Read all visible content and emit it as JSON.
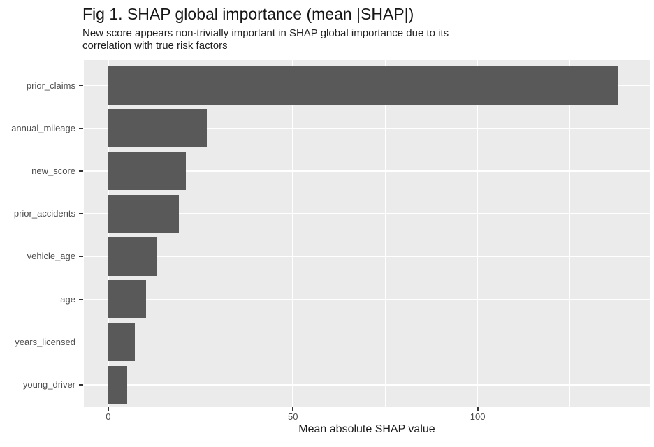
{
  "chart_data": {
    "type": "bar",
    "orientation": "horizontal",
    "title": "Fig 1. SHAP global importance (mean |SHAP|)",
    "subtitle": "New score appears non-trivially important in SHAP global importance due to its correlation with true risk factors",
    "subtitle_lines": [
      "New score appears non-trivially important in SHAP global importance due to its",
      "correlation with true risk factors"
    ],
    "xlabel": "Mean absolute SHAP value",
    "ylabel": "",
    "categories": [
      "prior_claims",
      "annual_mileage",
      "new_score",
      "prior_accidents",
      "vehicle_age",
      "age",
      "years_licensed",
      "young_driver"
    ],
    "values": [
      138,
      26.7,
      21,
      19.1,
      13.1,
      10.2,
      7.3,
      5.2
    ],
    "x_ticks": [
      0,
      50,
      100
    ],
    "x_minor_ticks": [
      25,
      75,
      125
    ],
    "xlim": [
      -6.6,
      146.6
    ],
    "grid": true,
    "legend_position": "none",
    "colors": {
      "bar": "#595959",
      "panel_background": "#EBEBEB",
      "gridline": "#FFFFFF",
      "axis_text": "#4D4D4D",
      "tick_mark": "#333333",
      "title_text": "#161616"
    }
  }
}
